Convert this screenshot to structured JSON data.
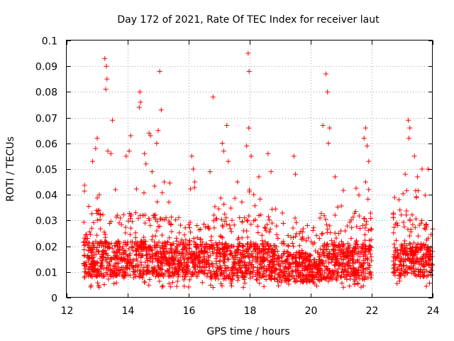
{
  "chart_data": {
    "type": "scatter",
    "title": "Day 172 of 2021, Rate Of TEC Index for receiver laut",
    "xlabel": "GPS time / hours",
    "ylabel": "ROTI / TECUs",
    "xlim": [
      12,
      24
    ],
    "ylim": [
      0,
      0.1
    ],
    "xticks": [
      12,
      14,
      16,
      18,
      20,
      22,
      24
    ],
    "xtick_labels": [
      "12",
      "14",
      "16",
      "18",
      "20",
      "22",
      "24"
    ],
    "yticks": [
      0,
      0.01,
      0.02,
      0.03,
      0.04,
      0.05,
      0.06,
      0.07,
      0.08,
      0.09,
      0.1
    ],
    "ytick_labels": [
      "0",
      "0.01",
      "0.02",
      "0.03",
      "0.04",
      "0.05",
      "0.06",
      "0.07",
      "0.08",
      "0.09",
      "0.1"
    ],
    "grid": true,
    "marker": "+",
    "marker_color": "#ff0000",
    "series": [
      {
        "name": "ROTI",
        "points": [
          [
            13.25,
            0.093
          ],
          [
            13.3,
            0.09
          ],
          [
            13.32,
            0.085
          ],
          [
            13.28,
            0.081
          ],
          [
            13.5,
            0.069
          ],
          [
            13.0,
            0.062
          ],
          [
            12.95,
            0.058
          ],
          [
            12.85,
            0.053
          ],
          [
            13.35,
            0.057
          ],
          [
            13.45,
            0.056
          ],
          [
            14.1,
            0.063
          ],
          [
            14.05,
            0.057
          ],
          [
            13.95,
            0.055
          ],
          [
            14.4,
            0.08
          ],
          [
            14.42,
            0.076
          ],
          [
            14.38,
            0.074
          ],
          [
            14.7,
            0.064
          ],
          [
            14.75,
            0.063
          ],
          [
            14.55,
            0.056
          ],
          [
            14.6,
            0.052
          ],
          [
            14.8,
            0.049
          ],
          [
            15.05,
            0.088
          ],
          [
            15.1,
            0.073
          ],
          [
            15.0,
            0.065
          ],
          [
            14.95,
            0.06
          ],
          [
            15.2,
            0.045
          ],
          [
            16.1,
            0.055
          ],
          [
            16.15,
            0.05
          ],
          [
            16.2,
            0.045
          ],
          [
            16.8,
            0.078
          ],
          [
            16.7,
            0.049
          ],
          [
            17.25,
            0.067
          ],
          [
            17.1,
            0.06
          ],
          [
            17.15,
            0.057
          ],
          [
            17.3,
            0.053
          ],
          [
            17.6,
            0.045
          ],
          [
            17.95,
            0.095
          ],
          [
            17.98,
            0.088
          ],
          [
            17.97,
            0.066
          ],
          [
            17.9,
            0.059
          ],
          [
            18.05,
            0.055
          ],
          [
            18.3,
            0.047
          ],
          [
            18.6,
            0.056
          ],
          [
            18.7,
            0.049
          ],
          [
            19.45,
            0.055
          ],
          [
            19.5,
            0.048
          ],
          [
            20.5,
            0.087
          ],
          [
            20.55,
            0.08
          ],
          [
            20.4,
            0.067
          ],
          [
            20.62,
            0.066
          ],
          [
            20.58,
            0.06
          ],
          [
            20.8,
            0.047
          ],
          [
            21.8,
            0.066
          ],
          [
            21.75,
            0.062
          ],
          [
            21.85,
            0.059
          ],
          [
            21.9,
            0.053
          ],
          [
            21.8,
            0.045
          ],
          [
            23.2,
            0.069
          ],
          [
            23.25,
            0.066
          ],
          [
            23.22,
            0.062
          ],
          [
            23.4,
            0.055
          ],
          [
            23.65,
            0.05
          ],
          [
            23.85,
            0.05
          ],
          [
            23.5,
            0.047
          ],
          [
            23.1,
            0.048
          ]
        ]
      }
    ],
    "density_bands": [
      {
        "x_range": [
          12.55,
          16.2
        ],
        "core": [
          0.008,
          0.022
        ],
        "upper": 0.045
      },
      {
        "x_range": [
          16.2,
          18.9
        ],
        "core": [
          0.007,
          0.021
        ],
        "upper": 0.042
      },
      {
        "x_range": [
          18.9,
          20.3
        ],
        "core": [
          0.006,
          0.017
        ],
        "upper": 0.033
      },
      {
        "x_range": [
          20.3,
          22.0
        ],
        "core": [
          0.007,
          0.021
        ],
        "upper": 0.043
      },
      {
        "x_range": [
          22.7,
          24.0
        ],
        "core": [
          0.008,
          0.021
        ],
        "upper": 0.042
      }
    ]
  }
}
